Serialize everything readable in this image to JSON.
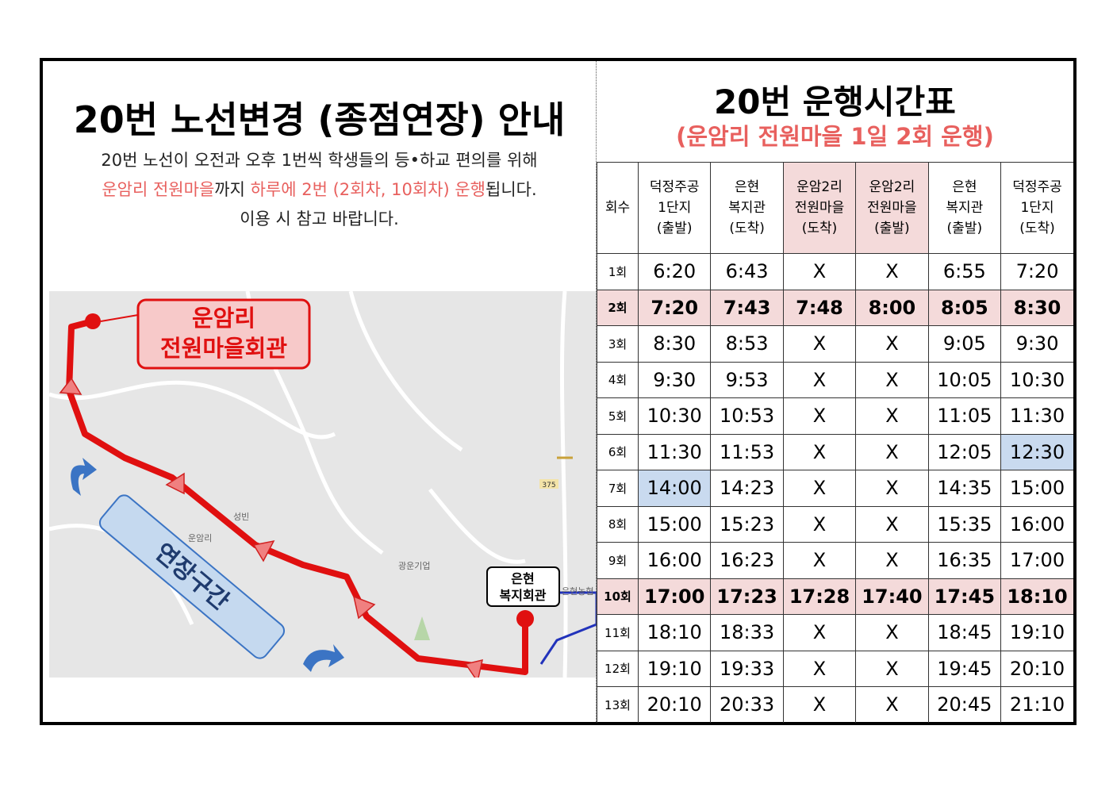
{
  "notice": {
    "title": "20번 노선변경 (종점연장) 안내",
    "lines": [
      [
        "20번 노선이 오전과 오후 1번씩 학생들의 등•하교 편의를 위해"
      ],
      [
        "운암리 전원마을",
        "까지 ",
        "하루에 2번 (2회차, 10회차) 운행",
        "됩니다."
      ],
      [
        "이용 시 참고 바랍니다."
      ]
    ]
  },
  "map": {
    "callout": [
      "운암리",
      "전원마을회관"
    ],
    "stop": [
      "은현",
      "복지회관"
    ],
    "extension": "연장구간",
    "place_labels": [
      "운암리",
      "광운기업",
      "375",
      "성빈",
      "은현농협"
    ]
  },
  "timetable": {
    "title": "20번 운행시간표",
    "subtitle": "(운암리 전원마을 1일 2회 운행)",
    "header": [
      "회수",
      "덕정주공\n1단지\n(출발)",
      "은현\n복지관\n(도착)",
      "운암2리\n전원마을\n(도착)",
      "운암2리\n전원마을\n(출발)",
      "은현\n복지관\n(출발)",
      "덕정주공\n1단지\n(도착)"
    ],
    "rows": [
      [
        "1회",
        "6:20",
        "6:43",
        "X",
        "X",
        "6:55",
        "7:20"
      ],
      [
        "2회",
        "7:20",
        "7:43",
        "7:48",
        "8:00",
        "8:05",
        "8:30"
      ],
      [
        "3회",
        "8:30",
        "8:53",
        "X",
        "X",
        "9:05",
        "9:30"
      ],
      [
        "4회",
        "9:30",
        "9:53",
        "X",
        "X",
        "10:05",
        "10:30"
      ],
      [
        "5회",
        "10:30",
        "10:53",
        "X",
        "X",
        "11:05",
        "11:30"
      ],
      [
        "6회",
        "11:30",
        "11:53",
        "X",
        "X",
        "12:05",
        "12:30"
      ],
      [
        "7회",
        "14:00",
        "14:23",
        "X",
        "X",
        "14:35",
        "15:00"
      ],
      [
        "8회",
        "15:00",
        "15:23",
        "X",
        "X",
        "15:35",
        "16:00"
      ],
      [
        "9회",
        "16:00",
        "16:23",
        "X",
        "X",
        "16:35",
        "17:00"
      ],
      [
        "10회",
        "17:00",
        "17:23",
        "17:28",
        "17:40",
        "17:45",
        "18:10"
      ],
      [
        "11회",
        "18:10",
        "18:33",
        "X",
        "X",
        "18:45",
        "19:10"
      ],
      [
        "12회",
        "19:10",
        "19:33",
        "X",
        "X",
        "19:45",
        "20:10"
      ],
      [
        "13회",
        "20:10",
        "20:33",
        "X",
        "X",
        "20:45",
        "21:10"
      ]
    ]
  }
}
